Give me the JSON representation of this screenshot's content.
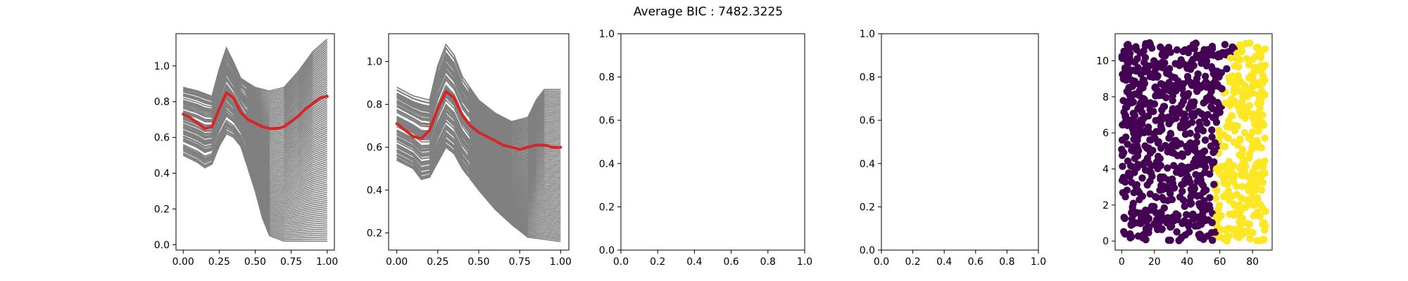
{
  "figure": {
    "suptitle": "Average BIC : 7482.3225"
  },
  "colors": {
    "curve": "#808080",
    "mean": "#d62728",
    "cluster_a": "#440154",
    "cluster_b": "#fde725",
    "axes": "#000000"
  },
  "chart_data": [
    {
      "type": "line",
      "title": "",
      "xlabel": "",
      "ylabel": "",
      "xlim": [
        -0.05,
        1.05
      ],
      "ylim": [
        -0.03,
        1.18
      ],
      "xticks": [
        0.0,
        0.25,
        0.5,
        0.75,
        1.0
      ],
      "xtick_labels": [
        "0.00",
        "0.25",
        "0.50",
        "0.75",
        "1.00"
      ],
      "yticks": [
        0.0,
        0.2,
        0.4,
        0.6,
        0.8,
        1.0
      ],
      "ytick_labels": [
        "0.0",
        "0.2",
        "0.4",
        "0.6",
        "0.8",
        "1.0"
      ],
      "curve_count": 100,
      "mean_curve": {
        "x": [
          0.0,
          0.05,
          0.1,
          0.15,
          0.2,
          0.25,
          0.3,
          0.35,
          0.4,
          0.45,
          0.5,
          0.55,
          0.6,
          0.65,
          0.7,
          0.75,
          0.8,
          0.85,
          0.9,
          0.95,
          1.0
        ],
        "y": [
          0.73,
          0.71,
          0.68,
          0.65,
          0.66,
          0.76,
          0.85,
          0.82,
          0.74,
          0.7,
          0.68,
          0.66,
          0.65,
          0.65,
          0.66,
          0.69,
          0.72,
          0.76,
          0.79,
          0.82,
          0.83
        ]
      },
      "envelope_upper": {
        "x": [
          0.0,
          0.1,
          0.2,
          0.25,
          0.3,
          0.35,
          0.4,
          0.5,
          0.6,
          0.7,
          0.8,
          0.9,
          1.0
        ],
        "y": [
          0.88,
          0.86,
          0.83,
          0.98,
          1.1,
          1.02,
          0.93,
          0.88,
          0.86,
          0.88,
          0.97,
          1.08,
          1.15
        ]
      },
      "envelope_lower": {
        "x": [
          0.0,
          0.1,
          0.15,
          0.2,
          0.25,
          0.3,
          0.35,
          0.4,
          0.5,
          0.55,
          0.6,
          0.7,
          0.8,
          0.9,
          1.0
        ],
        "y": [
          0.5,
          0.46,
          0.43,
          0.45,
          0.55,
          0.62,
          0.6,
          0.55,
          0.3,
          0.15,
          0.05,
          0.02,
          0.02,
          0.02,
          0.02
        ]
      }
    },
    {
      "type": "line",
      "title": "",
      "xlabel": "",
      "ylabel": "",
      "xlim": [
        -0.05,
        1.05
      ],
      "ylim": [
        0.12,
        1.13
      ],
      "xticks": [
        0.0,
        0.25,
        0.5,
        0.75,
        1.0
      ],
      "xtick_labels": [
        "0.00",
        "0.25",
        "0.50",
        "0.75",
        "1.00"
      ],
      "yticks": [
        0.2,
        0.4,
        0.6,
        0.8,
        1.0
      ],
      "ytick_labels": [
        "0.2",
        "0.4",
        "0.6",
        "0.8",
        "1.0"
      ],
      "curve_count": 100,
      "mean_curve": {
        "x": [
          0.0,
          0.05,
          0.1,
          0.15,
          0.2,
          0.25,
          0.3,
          0.35,
          0.4,
          0.45,
          0.5,
          0.55,
          0.6,
          0.65,
          0.7,
          0.75,
          0.8,
          0.85,
          0.9,
          0.95,
          1.0
        ],
        "y": [
          0.71,
          0.68,
          0.65,
          0.64,
          0.68,
          0.78,
          0.86,
          0.83,
          0.75,
          0.7,
          0.67,
          0.65,
          0.63,
          0.61,
          0.6,
          0.59,
          0.6,
          0.61,
          0.61,
          0.6,
          0.6
        ]
      },
      "envelope_upper": {
        "x": [
          0.0,
          0.1,
          0.2,
          0.25,
          0.3,
          0.35,
          0.4,
          0.5,
          0.6,
          0.7,
          0.8,
          0.85,
          0.9,
          1.0
        ],
        "y": [
          0.88,
          0.84,
          0.82,
          0.98,
          1.08,
          1.03,
          0.93,
          0.82,
          0.76,
          0.72,
          0.74,
          0.82,
          0.87,
          0.87
        ]
      },
      "envelope_lower": {
        "x": [
          0.0,
          0.1,
          0.15,
          0.2,
          0.25,
          0.3,
          0.35,
          0.4,
          0.5,
          0.6,
          0.7,
          0.8,
          0.9,
          1.0
        ],
        "y": [
          0.54,
          0.5,
          0.45,
          0.46,
          0.53,
          0.6,
          0.57,
          0.5,
          0.4,
          0.31,
          0.24,
          0.18,
          0.17,
          0.16
        ]
      }
    },
    {
      "type": "line",
      "title": "",
      "xlabel": "",
      "ylabel": "",
      "xlim": [
        0,
        1
      ],
      "ylim": [
        0,
        1
      ],
      "xticks": [
        0.0,
        0.2,
        0.4,
        0.6,
        0.8,
        1.0
      ],
      "xtick_labels": [
        "0.0",
        "0.2",
        "0.4",
        "0.6",
        "0.8",
        "1.0"
      ],
      "yticks": [
        0.0,
        0.2,
        0.4,
        0.6,
        0.8,
        1.0
      ],
      "ytick_labels": [
        "0.0",
        "0.2",
        "0.4",
        "0.6",
        "0.8",
        "1.0"
      ]
    },
    {
      "type": "line",
      "title": "",
      "xlabel": "",
      "ylabel": "",
      "xlim": [
        0,
        1
      ],
      "ylim": [
        0,
        1
      ],
      "xticks": [
        0.0,
        0.2,
        0.4,
        0.6,
        0.8,
        1.0
      ],
      "xtick_labels": [
        "0.0",
        "0.2",
        "0.4",
        "0.6",
        "0.8",
        "1.0"
      ],
      "yticks": [
        0.0,
        0.2,
        0.4,
        0.6,
        0.8,
        1.0
      ],
      "ytick_labels": [
        "0.0",
        "0.2",
        "0.4",
        "0.6",
        "0.8",
        "1.0"
      ]
    },
    {
      "type": "scatter",
      "title": "",
      "xlabel": "",
      "ylabel": "",
      "xlim": [
        -4,
        92
      ],
      "ylim": [
        -0.5,
        11.5
      ],
      "xticks": [
        0,
        20,
        40,
        60,
        80
      ],
      "xtick_labels": [
        "0",
        "20",
        "40",
        "60",
        "80"
      ],
      "yticks": [
        0,
        2,
        4,
        6,
        8,
        10
      ],
      "ytick_labels": [
        "0",
        "2",
        "4",
        "6",
        "8",
        "10"
      ],
      "point_count": 1000,
      "x_range": [
        0,
        88
      ],
      "y_range": [
        0,
        11
      ],
      "boundary": {
        "y": [
          0,
          2,
          4,
          5,
          6,
          8,
          10,
          11
        ],
        "x": [
          57,
          57,
          56,
          59,
          58,
          62,
          66,
          70
        ]
      },
      "series": [
        {
          "color_key": "cluster_a",
          "side": "left"
        },
        {
          "color_key": "cluster_b",
          "side": "right"
        }
      ]
    }
  ]
}
